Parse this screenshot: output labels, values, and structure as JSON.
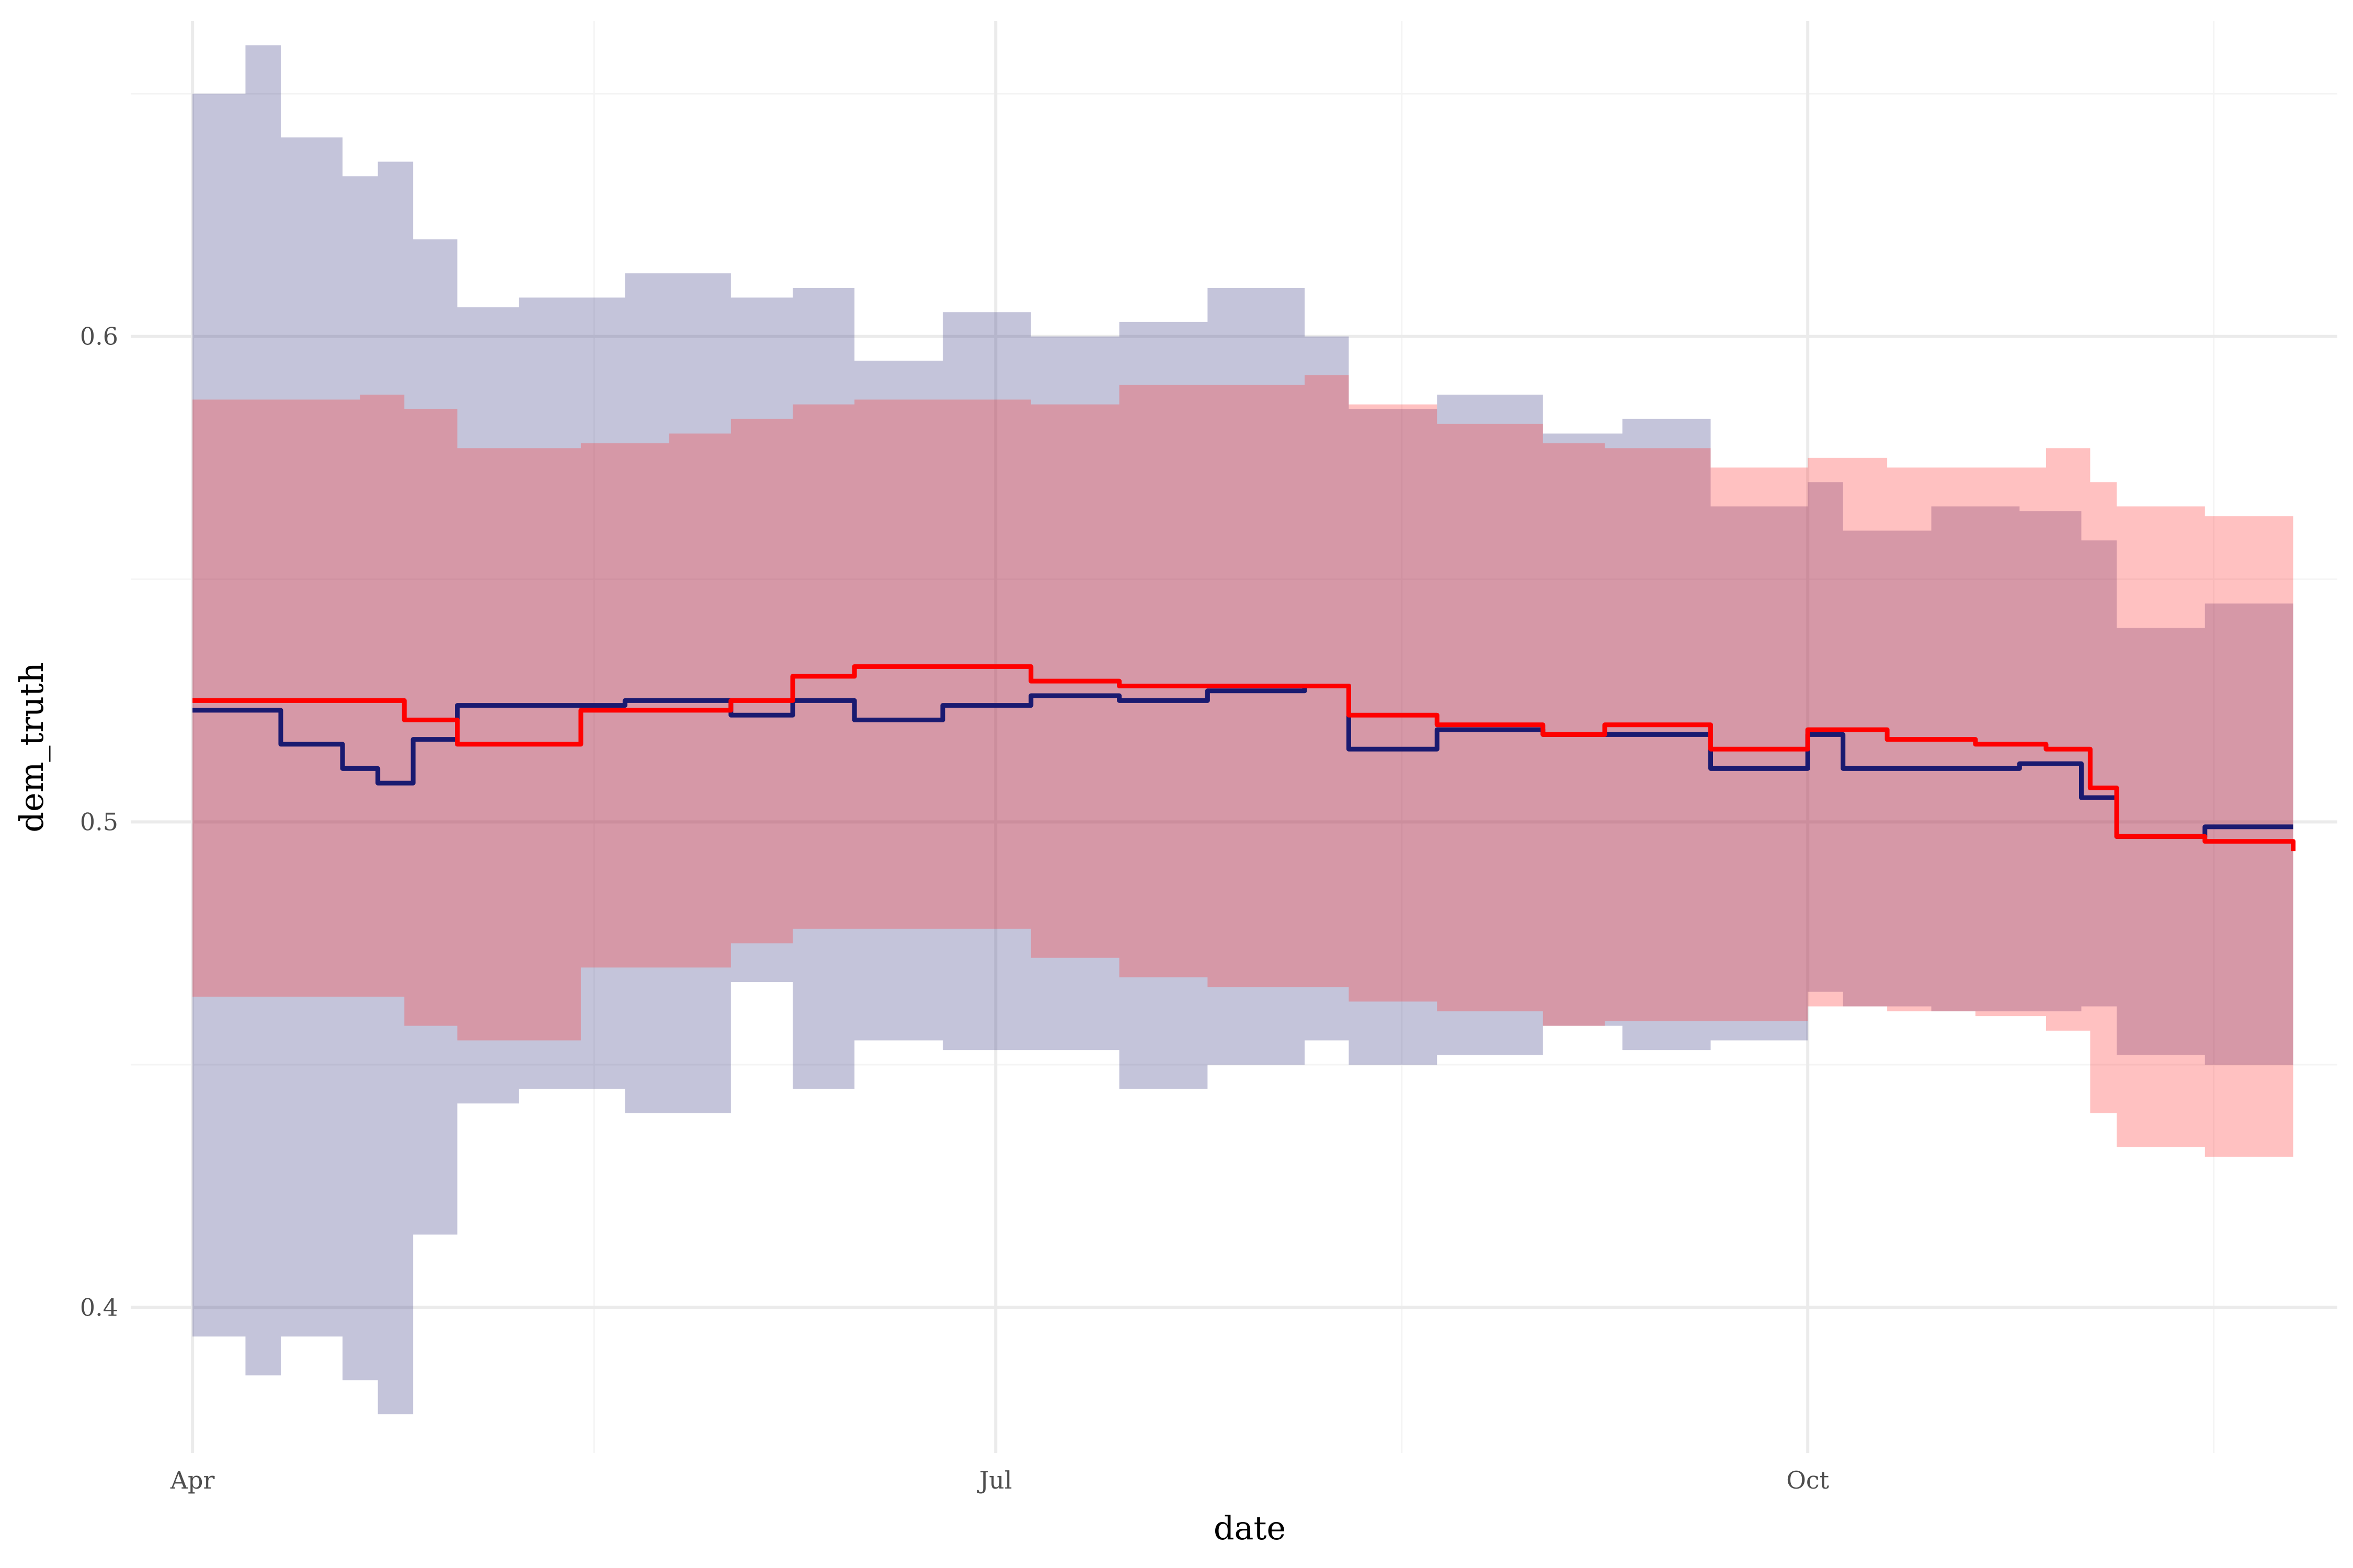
{
  "chart_data": {
    "type": "area",
    "xlabel": "date",
    "ylabel": "dem_truth",
    "x_ticks": [
      {
        "label": "Apr",
        "value": "2020-04-01"
      },
      {
        "label": "Jul",
        "value": "2020-07-01"
      },
      {
        "label": "Oct",
        "value": "2020-10-01"
      }
    ],
    "y_ticks": [
      0.4,
      0.5,
      0.6
    ],
    "ylim": [
      0.37,
      0.665
    ],
    "xlim": [
      "2020-03-25",
      "2020-11-30"
    ],
    "grid": true,
    "legend": "none",
    "colors": {
      "navy_band": "#3d3d85",
      "red_band": "#ff3333",
      "navy_line": "#1a1a70",
      "red_line": "#ff0000",
      "grid_major": "#ebebeb",
      "grid_minor": "#f4f4f4"
    },
    "series": [
      {
        "line_color": "#1a1a70",
        "band_color": "#3d3d85",
        "points": [
          {
            "x": "2020-04-01",
            "y": 0.523,
            "lo": 0.394,
            "hi": 0.65
          },
          {
            "x": "2020-04-07",
            "y": 0.523,
            "lo": 0.386,
            "hi": 0.66
          },
          {
            "x": "2020-04-11",
            "y": 0.516,
            "lo": 0.394,
            "hi": 0.641
          },
          {
            "x": "2020-04-18",
            "y": 0.511,
            "lo": 0.385,
            "hi": 0.633
          },
          {
            "x": "2020-04-22",
            "y": 0.508,
            "lo": 0.378,
            "hi": 0.636
          },
          {
            "x": "2020-04-26",
            "y": 0.517,
            "lo": 0.415,
            "hi": 0.62
          },
          {
            "x": "2020-05-01",
            "y": 0.524,
            "lo": 0.442,
            "hi": 0.606
          },
          {
            "x": "2020-05-08",
            "y": 0.524,
            "lo": 0.445,
            "hi": 0.608
          },
          {
            "x": "2020-05-20",
            "y": 0.525,
            "lo": 0.44,
            "hi": 0.613
          },
          {
            "x": "2020-06-01",
            "y": 0.522,
            "lo": 0.467,
            "hi": 0.608
          },
          {
            "x": "2020-06-08",
            "y": 0.525,
            "lo": 0.445,
            "hi": 0.61
          },
          {
            "x": "2020-06-15",
            "y": 0.521,
            "lo": 0.455,
            "hi": 0.595
          },
          {
            "x": "2020-06-25",
            "y": 0.524,
            "lo": 0.453,
            "hi": 0.605
          },
          {
            "x": "2020-07-05",
            "y": 0.526,
            "lo": 0.453,
            "hi": 0.6
          },
          {
            "x": "2020-07-15",
            "y": 0.525,
            "lo": 0.445,
            "hi": 0.603
          },
          {
            "x": "2020-07-25",
            "y": 0.527,
            "lo": 0.45,
            "hi": 0.61
          },
          {
            "x": "2020-08-05",
            "y": 0.528,
            "lo": 0.455,
            "hi": 0.6
          },
          {
            "x": "2020-08-10",
            "y": 0.515,
            "lo": 0.45,
            "hi": 0.585
          },
          {
            "x": "2020-08-20",
            "y": 0.519,
            "lo": 0.452,
            "hi": 0.588
          },
          {
            "x": "2020-09-01",
            "y": 0.518,
            "lo": 0.458,
            "hi": 0.58
          },
          {
            "x": "2020-09-10",
            "y": 0.518,
            "lo": 0.453,
            "hi": 0.583
          },
          {
            "x": "2020-09-20",
            "y": 0.511,
            "lo": 0.455,
            "hi": 0.565
          },
          {
            "x": "2020-10-01",
            "y": 0.518,
            "lo": 0.465,
            "hi": 0.57
          },
          {
            "x": "2020-10-05",
            "y": 0.511,
            "lo": 0.462,
            "hi": 0.56
          },
          {
            "x": "2020-10-15",
            "y": 0.511,
            "lo": 0.461,
            "hi": 0.565
          },
          {
            "x": "2020-10-25",
            "y": 0.512,
            "lo": 0.461,
            "hi": 0.564
          },
          {
            "x": "2020-11-01",
            "y": 0.505,
            "lo": 0.462,
            "hi": 0.558
          },
          {
            "x": "2020-11-05",
            "y": 0.497,
            "lo": 0.452,
            "hi": 0.54
          },
          {
            "x": "2020-11-15",
            "y": 0.499,
            "lo": 0.45,
            "hi": 0.545
          },
          {
            "x": "2020-11-25",
            "y": 0.499,
            "lo": 0.449,
            "hi": 0.549
          }
        ]
      },
      {
        "line_color": "#ff0000",
        "band_color": "#ff3333",
        "points": [
          {
            "x": "2020-04-01",
            "y": 0.525,
            "lo": 0.464,
            "hi": 0.587
          },
          {
            "x": "2020-04-20",
            "y": 0.525,
            "lo": 0.464,
            "hi": 0.588
          },
          {
            "x": "2020-04-25",
            "y": 0.521,
            "lo": 0.458,
            "hi": 0.585
          },
          {
            "x": "2020-05-01",
            "y": 0.516,
            "lo": 0.455,
            "hi": 0.577
          },
          {
            "x": "2020-05-10",
            "y": 0.516,
            "lo": 0.455,
            "hi": 0.577
          },
          {
            "x": "2020-05-15",
            "y": 0.523,
            "lo": 0.47,
            "hi": 0.578
          },
          {
            "x": "2020-05-25",
            "y": 0.523,
            "lo": 0.47,
            "hi": 0.58
          },
          {
            "x": "2020-06-01",
            "y": 0.525,
            "lo": 0.475,
            "hi": 0.583
          },
          {
            "x": "2020-06-08",
            "y": 0.53,
            "lo": 0.478,
            "hi": 0.586
          },
          {
            "x": "2020-06-15",
            "y": 0.532,
            "lo": 0.478,
            "hi": 0.587
          },
          {
            "x": "2020-06-28",
            "y": 0.532,
            "lo": 0.478,
            "hi": 0.587
          },
          {
            "x": "2020-07-05",
            "y": 0.529,
            "lo": 0.472,
            "hi": 0.586
          },
          {
            "x": "2020-07-15",
            "y": 0.528,
            "lo": 0.468,
            "hi": 0.59
          },
          {
            "x": "2020-07-25",
            "y": 0.528,
            "lo": 0.466,
            "hi": 0.59
          },
          {
            "x": "2020-08-05",
            "y": 0.528,
            "lo": 0.466,
            "hi": 0.592
          },
          {
            "x": "2020-08-10",
            "y": 0.522,
            "lo": 0.463,
            "hi": 0.586
          },
          {
            "x": "2020-08-20",
            "y": 0.52,
            "lo": 0.461,
            "hi": 0.582
          },
          {
            "x": "2020-09-01",
            "y": 0.518,
            "lo": 0.458,
            "hi": 0.578
          },
          {
            "x": "2020-09-08",
            "y": 0.52,
            "lo": 0.459,
            "hi": 0.577
          },
          {
            "x": "2020-09-20",
            "y": 0.515,
            "lo": 0.459,
            "hi": 0.573
          },
          {
            "x": "2020-10-01",
            "y": 0.519,
            "lo": 0.462,
            "hi": 0.575
          },
          {
            "x": "2020-10-10",
            "y": 0.517,
            "lo": 0.461,
            "hi": 0.573
          },
          {
            "x": "2020-10-20",
            "y": 0.516,
            "lo": 0.46,
            "hi": 0.573
          },
          {
            "x": "2020-10-28",
            "y": 0.515,
            "lo": 0.457,
            "hi": 0.577
          },
          {
            "x": "2020-11-02",
            "y": 0.507,
            "lo": 0.44,
            "hi": 0.57
          },
          {
            "x": "2020-11-05",
            "y": 0.497,
            "lo": 0.433,
            "hi": 0.565
          },
          {
            "x": "2020-11-15",
            "y": 0.496,
            "lo": 0.431,
            "hi": 0.563
          },
          {
            "x": "2020-11-25",
            "y": 0.494,
            "lo": 0.429,
            "hi": 0.561
          }
        ]
      }
    ]
  }
}
